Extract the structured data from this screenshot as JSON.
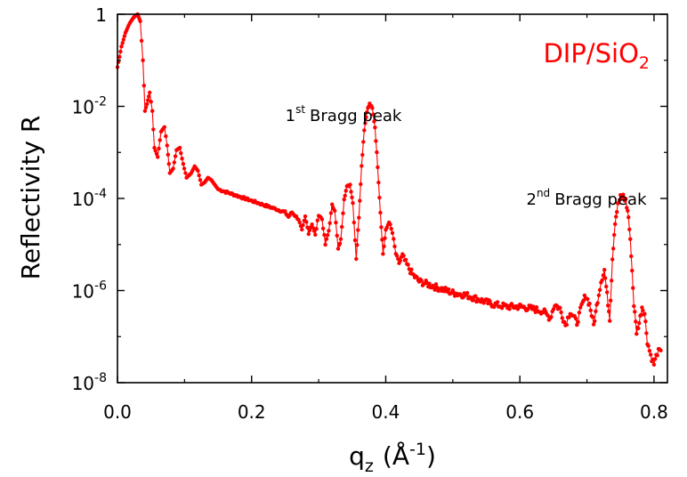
{
  "chart_data": {
    "type": "scatter",
    "title": "",
    "xlabel_main": "q",
    "xlabel_sub": "z",
    "xlabel_unit_open": "(",
    "xlabel_unit": "Å",
    "xlabel_unit_sup": "-1",
    "xlabel_unit_close": ")",
    "ylabel": "Reflectivity R",
    "xlim": [
      0.0,
      0.82
    ],
    "ylim_log10": [
      -8,
      0
    ],
    "y_scale": "log",
    "grid": false,
    "x_ticks": [
      {
        "value": 0.0,
        "label": "0.0"
      },
      {
        "value": 0.2,
        "label": "0.2"
      },
      {
        "value": 0.4,
        "label": "0.4"
      },
      {
        "value": 0.6,
        "label": "0.6"
      },
      {
        "value": 0.8,
        "label": "0.8"
      }
    ],
    "y_ticks": [
      {
        "exp": 0,
        "base": "1",
        "sup": ""
      },
      {
        "exp": -2,
        "base": "10",
        "sup": "-2"
      },
      {
        "exp": -4,
        "base": "10",
        "sup": "-4"
      },
      {
        "exp": -6,
        "base": "10",
        "sup": "-6"
      },
      {
        "exp": -8,
        "base": "10",
        "sup": "-8"
      }
    ],
    "legend": {
      "text": "DIP/SiO",
      "sub": "2",
      "placement": "top-right"
    },
    "annotations": [
      {
        "base": "1",
        "sup": "st",
        "text": "Bragg peak",
        "x": 0.375,
        "log10y": -1.95
      },
      {
        "base": "2",
        "sup": "nd",
        "text": "Bragg peak",
        "x": 0.752,
        "log10y": -3.95
      }
    ],
    "series": [
      {
        "color": "#ff0000",
        "anchors": [
          [
            0.0,
            -1.15
          ],
          [
            0.006,
            -0.7
          ],
          [
            0.012,
            -0.4
          ],
          [
            0.018,
            -0.2
          ],
          [
            0.024,
            -0.07
          ],
          [
            0.03,
            0.0
          ],
          [
            0.034,
            -0.15
          ],
          [
            0.038,
            -1.0
          ],
          [
            0.041,
            -2.1
          ],
          [
            0.044,
            -1.95
          ],
          [
            0.048,
            -1.7
          ],
          [
            0.052,
            -2.1
          ],
          [
            0.055,
            -2.9
          ],
          [
            0.06,
            -3.1
          ],
          [
            0.065,
            -2.55
          ],
          [
            0.07,
            -2.45
          ],
          [
            0.074,
            -2.85
          ],
          [
            0.078,
            -3.45
          ],
          [
            0.083,
            -3.35
          ],
          [
            0.088,
            -2.95
          ],
          [
            0.093,
            -2.9
          ],
          [
            0.098,
            -3.25
          ],
          [
            0.103,
            -3.55
          ],
          [
            0.11,
            -3.45
          ],
          [
            0.115,
            -3.3
          ],
          [
            0.12,
            -3.4
          ],
          [
            0.125,
            -3.7
          ],
          [
            0.13,
            -3.65
          ],
          [
            0.135,
            -3.55
          ],
          [
            0.14,
            -3.6
          ],
          [
            0.15,
            -3.8
          ],
          [
            0.16,
            -3.85
          ],
          [
            0.17,
            -3.9
          ],
          [
            0.18,
            -3.95
          ],
          [
            0.2,
            -4.05
          ],
          [
            0.22,
            -4.15
          ],
          [
            0.24,
            -4.25
          ],
          [
            0.25,
            -4.3
          ],
          [
            0.255,
            -4.4
          ],
          [
            0.26,
            -4.3
          ],
          [
            0.27,
            -4.45
          ],
          [
            0.275,
            -4.7
          ],
          [
            0.28,
            -4.4
          ],
          [
            0.285,
            -4.75
          ],
          [
            0.29,
            -4.55
          ],
          [
            0.295,
            -4.8
          ],
          [
            0.3,
            -4.35
          ],
          [
            0.305,
            -4.45
          ],
          [
            0.31,
            -5.0
          ],
          [
            0.315,
            -4.7
          ],
          [
            0.32,
            -4.15
          ],
          [
            0.324,
            -4.25
          ],
          [
            0.329,
            -5.1
          ],
          [
            0.333,
            -4.9
          ],
          [
            0.338,
            -4.0
          ],
          [
            0.342,
            -3.75
          ],
          [
            0.347,
            -3.7
          ],
          [
            0.351,
            -4.1
          ],
          [
            0.356,
            -5.3
          ],
          [
            0.36,
            -4.4
          ],
          [
            0.364,
            -3.3
          ],
          [
            0.368,
            -2.5
          ],
          [
            0.372,
            -2.1
          ],
          [
            0.376,
            -1.95
          ],
          [
            0.38,
            -2.05
          ],
          [
            0.384,
            -2.45
          ],
          [
            0.388,
            -3.3
          ],
          [
            0.392,
            -4.3
          ],
          [
            0.396,
            -5.2
          ],
          [
            0.4,
            -4.7
          ],
          [
            0.405,
            -4.5
          ],
          [
            0.41,
            -4.75
          ],
          [
            0.415,
            -5.2
          ],
          [
            0.42,
            -5.4
          ],
          [
            0.425,
            -5.25
          ],
          [
            0.43,
            -5.4
          ],
          [
            0.44,
            -5.65
          ],
          [
            0.45,
            -5.8
          ],
          [
            0.46,
            -5.85
          ],
          [
            0.48,
            -5.95
          ],
          [
            0.5,
            -6.05
          ],
          [
            0.52,
            -6.1
          ],
          [
            0.54,
            -6.2
          ],
          [
            0.56,
            -6.3
          ],
          [
            0.58,
            -6.35
          ],
          [
            0.6,
            -6.35
          ],
          [
            0.62,
            -6.4
          ],
          [
            0.635,
            -6.45
          ],
          [
            0.645,
            -6.6
          ],
          [
            0.652,
            -6.3
          ],
          [
            0.66,
            -6.4
          ],
          [
            0.668,
            -6.75
          ],
          [
            0.675,
            -6.45
          ],
          [
            0.685,
            -6.7
          ],
          [
            0.692,
            -6.35
          ],
          [
            0.698,
            -6.1
          ],
          [
            0.704,
            -6.3
          ],
          [
            0.71,
            -6.75
          ],
          [
            0.716,
            -6.2
          ],
          [
            0.721,
            -5.8
          ],
          [
            0.726,
            -5.55
          ],
          [
            0.73,
            -6.1
          ],
          [
            0.734,
            -6.6
          ],
          [
            0.738,
            -5.3
          ],
          [
            0.742,
            -4.5
          ],
          [
            0.746,
            -4.15
          ],
          [
            0.75,
            -3.98
          ],
          [
            0.754,
            -3.95
          ],
          [
            0.758,
            -4.05
          ],
          [
            0.762,
            -4.4
          ],
          [
            0.766,
            -5.2
          ],
          [
            0.77,
            -6.3
          ],
          [
            0.774,
            -6.9
          ],
          [
            0.778,
            -6.7
          ],
          [
            0.782,
            -6.35
          ],
          [
            0.786,
            -6.5
          ],
          [
            0.79,
            -7.1
          ],
          [
            0.795,
            -7.4
          ],
          [
            0.8,
            -7.6
          ],
          [
            0.805,
            -7.35
          ],
          [
            0.81,
            -7.3
          ]
        ]
      }
    ]
  }
}
